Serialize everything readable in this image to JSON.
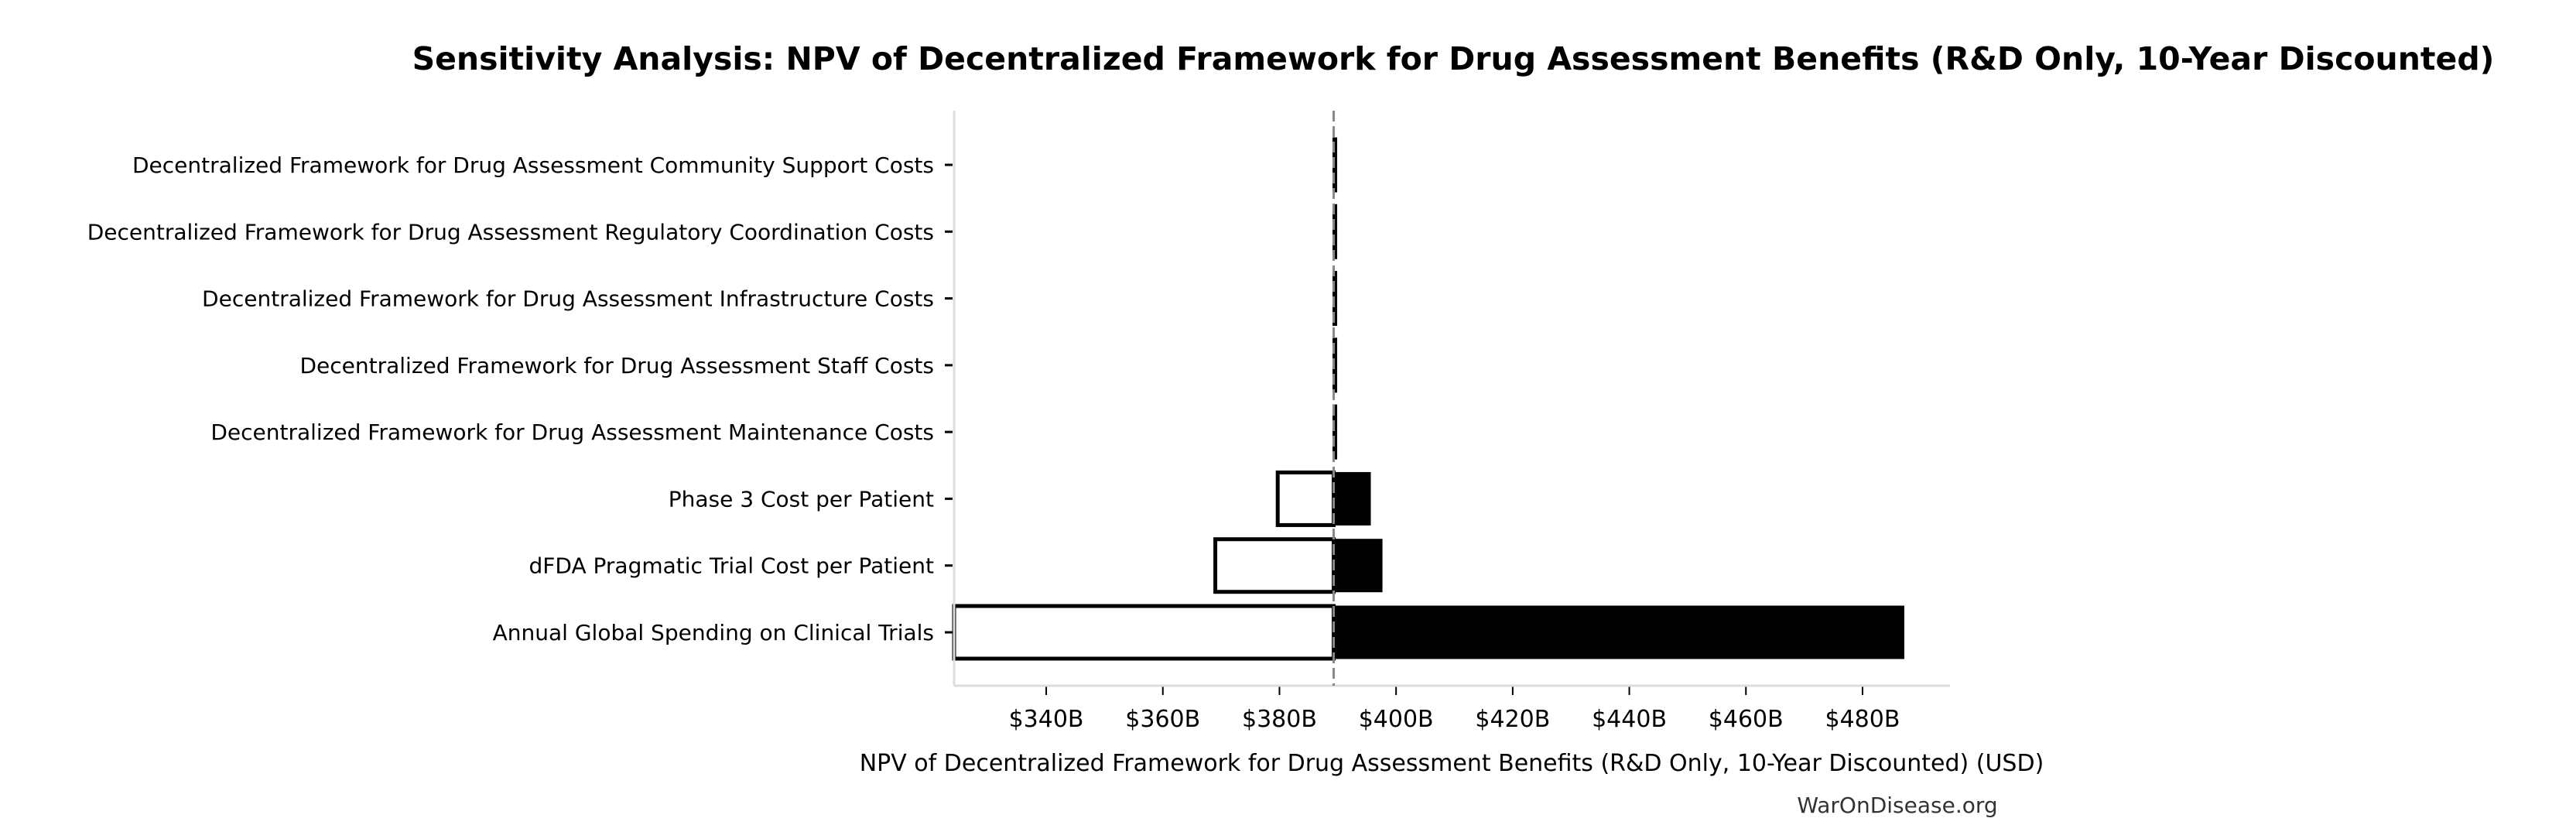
{
  "chart_data": {
    "type": "bar",
    "orientation": "horizontal",
    "subtype": "tornado",
    "title": "Sensitivity Analysis: NPV of Decentralized Framework for Drug Assessment Benefits (R&D Only, 10-Year Discounted)",
    "xlabel": "NPV of Decentralized Framework for Drug Assessment Benefits (R&D Only, 10-Year Discounted) (USD)",
    "ylabel": "",
    "baseline": 389.3,
    "xlim": [
      324.2,
      495
    ],
    "x_ticks": [
      340,
      360,
      380,
      400,
      420,
      440,
      460,
      480
    ],
    "x_tick_labels": [
      "$340B",
      "$360B",
      "$380B",
      "$400B",
      "$420B",
      "$440B",
      "$460B",
      "$480B"
    ],
    "units": "billion USD",
    "grid": false,
    "categories": [
      "Decentralized Framework for Drug Assessment Community Support Costs",
      "Decentralized Framework for Drug Assessment Regulatory Coordination Costs",
      "Decentralized Framework for Drug Assessment Infrastructure Costs",
      "Decentralized Framework for Drug Assessment Staff Costs",
      "Decentralized Framework for Drug Assessment Maintenance Costs",
      "Phase 3 Cost per Patient",
      "dFDA Pragmatic Trial Cost per Patient",
      "Annual Global Spending on Clinical Trials"
    ],
    "low": [
      389.2,
      389.2,
      389.2,
      389.2,
      389.2,
      379.7,
      369.0,
      324.2
    ],
    "high": [
      389.5,
      389.5,
      389.5,
      389.5,
      389.5,
      395.6,
      397.6,
      487.1
    ],
    "colors": {
      "low_fill": "#ffffff",
      "high_fill": "#000000",
      "stroke": "#000000",
      "baseline": "#888888",
      "spine": "#dddddd"
    }
  },
  "watermark": "WarOnDisease.org"
}
